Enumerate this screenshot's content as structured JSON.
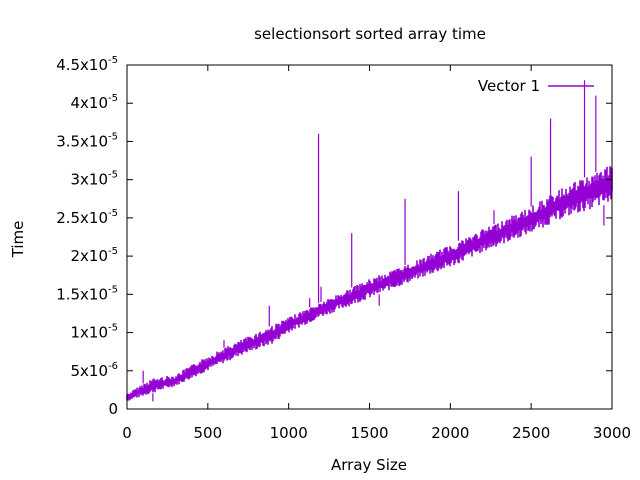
{
  "chart_data": {
    "type": "line",
    "title": "selectionsort sorted array time",
    "xlabel": "Array Size",
    "ylabel": "Time",
    "xlim": [
      0,
      3000
    ],
    "ylim": [
      0,
      4.5e-05
    ],
    "grid": false,
    "legend_placement": "top-right",
    "x_ticks": [
      0,
      500,
      1000,
      1500,
      2000,
      2500,
      3000
    ],
    "x_tick_labels": [
      "0",
      "500",
      "1000",
      "1500",
      "2000",
      "2500",
      "3000"
    ],
    "y_ticks": [
      0,
      5e-06,
      1e-05,
      1.5e-05,
      2e-05,
      2.5e-05,
      3e-05,
      3.5e-05,
      4e-05,
      4.5e-05
    ],
    "y_tick_labels": [
      {
        "mantissa": "0",
        "exp": ""
      },
      {
        "mantissa": "5x10",
        "exp": "-6"
      },
      {
        "mantissa": "1x10",
        "exp": "-5"
      },
      {
        "mantissa": "1.5x10",
        "exp": "-5"
      },
      {
        "mantissa": "2x10",
        "exp": "-5"
      },
      {
        "mantissa": "2.5x10",
        "exp": "-5"
      },
      {
        "mantissa": "3x10",
        "exp": "-5"
      },
      {
        "mantissa": "3.5x10",
        "exp": "-5"
      },
      {
        "mantissa": "4x10",
        "exp": "-5"
      },
      {
        "mantissa": "4.5x10",
        "exp": "-5"
      }
    ],
    "series": [
      {
        "name": "Vector 1",
        "color": "#9400d3",
        "envelope_x": [
          0,
          150,
          300,
          500,
          700,
          900,
          1000,
          1200,
          1500,
          1800,
          2000,
          2200,
          2500,
          2700,
          3000
        ],
        "envelope_low": [
          1e-06,
          2e-06,
          3e-06,
          5e-06,
          7e-06,
          8.5e-06,
          1e-05,
          1.2e-05,
          1.45e-05,
          1.7e-05,
          1.85e-05,
          2.05e-05,
          2.3e-05,
          2.5e-05,
          2.7e-05
        ],
        "envelope_high": [
          2e-06,
          4e-06,
          4.5e-06,
          7e-06,
          9e-06,
          1.1e-05,
          1.2e-05,
          1.4e-05,
          1.7e-05,
          1.95e-05,
          2.15e-05,
          2.35e-05,
          2.65e-05,
          2.9e-05,
          3.2e-05
        ],
        "spikes": [
          {
            "x": 100,
            "y": 5e-06
          },
          {
            "x": 160,
            "y": 1e-06
          },
          {
            "x": 600,
            "y": 9e-06
          },
          {
            "x": 880,
            "y": 1.35e-05
          },
          {
            "x": 1130,
            "y": 1.45e-05
          },
          {
            "x": 1185,
            "y": 3.6e-05
          },
          {
            "x": 1200,
            "y": 1.6e-05
          },
          {
            "x": 1390,
            "y": 2.3e-05
          },
          {
            "x": 1560,
            "y": 1.35e-05
          },
          {
            "x": 1720,
            "y": 2.75e-05
          },
          {
            "x": 2050,
            "y": 2.85e-05
          },
          {
            "x": 2270,
            "y": 2.6e-05
          },
          {
            "x": 2500,
            "y": 3.3e-05
          },
          {
            "x": 2620,
            "y": 3.8e-05
          },
          {
            "x": 2830,
            "y": 4.3e-05
          },
          {
            "x": 2900,
            "y": 4.1e-05
          },
          {
            "x": 2950,
            "y": 2.4e-05
          }
        ]
      }
    ]
  }
}
